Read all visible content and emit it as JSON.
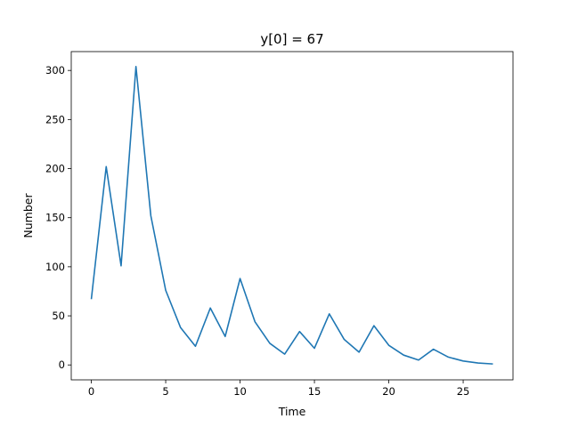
{
  "chart_data": {
    "type": "line",
    "title": "y[0] = 67",
    "xlabel": "Time",
    "ylabel": "Number",
    "xlim": [
      -1.35,
      28.35
    ],
    "ylim": [
      -15.2,
      319.2
    ],
    "xticks": [
      0,
      5,
      10,
      15,
      20,
      25
    ],
    "yticks": [
      0,
      50,
      100,
      150,
      200,
      250,
      300
    ],
    "grid": false,
    "series": [
      {
        "color": "#1f77b4",
        "x": [
          0,
          1,
          2,
          3,
          4,
          5,
          6,
          7,
          8,
          9,
          10,
          11,
          12,
          13,
          14,
          15,
          16,
          17,
          18,
          19,
          20,
          21,
          22,
          23,
          24,
          25,
          26,
          27
        ],
        "y": [
          67,
          202,
          101,
          304,
          152,
          76,
          38,
          19,
          58,
          29,
          88,
          44,
          22,
          11,
          34,
          17,
          52,
          26,
          13,
          40,
          20,
          10,
          5,
          16,
          8,
          4,
          2,
          1
        ]
      }
    ]
  }
}
